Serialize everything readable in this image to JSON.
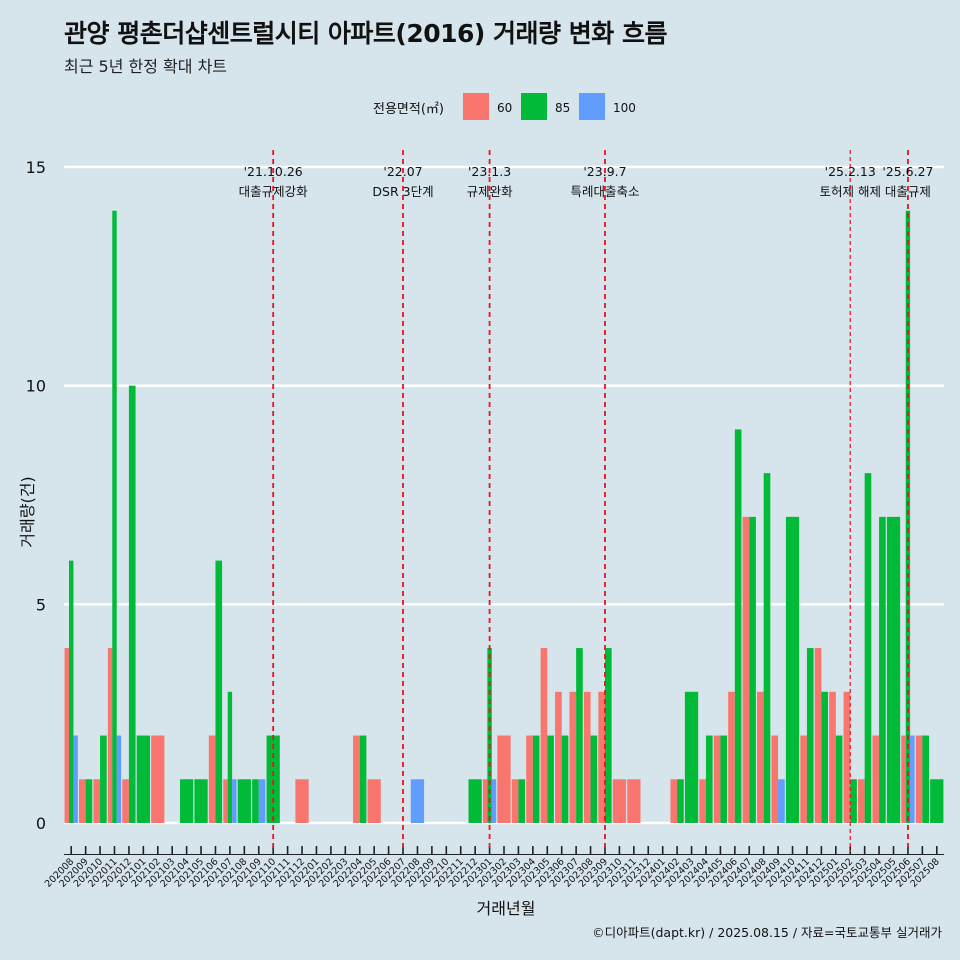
{
  "title": "관양 평촌더샵센트럴시티 아파트(2016) 거래량 변화 흐름",
  "subtitle": "최근 5년 한정 확대 차트",
  "caption": "©디아파트(dapt.kr) / 2025.08.15 / 자료=국토교통부 실거래가",
  "colors": {
    "background": "#d6e4ec",
    "60": "#f8766d",
    "85": "#00ba38",
    "100": "#619cff",
    "event_line": "#e8141c"
  },
  "chart_data": {
    "type": "bar",
    "title": "관양 평촌더샵센트럴시티 아파트(2016) 거래량 변화 흐름",
    "subtitle": "최근 5년 한정 확대 차트",
    "xlabel": "거래년월",
    "ylabel": "거래량(건)",
    "ylim": [
      0,
      15
    ],
    "yticks": [
      0,
      5,
      10,
      15
    ],
    "grid": true,
    "legend": {
      "title": "전용면적(㎡)",
      "position": "top"
    },
    "categories": [
      "202008",
      "202009",
      "202010",
      "202011",
      "202012",
      "202101",
      "202102",
      "202103",
      "202104",
      "202105",
      "202106",
      "202107",
      "202108",
      "202109",
      "202110",
      "202111",
      "202112",
      "202201",
      "202202",
      "202203",
      "202204",
      "202205",
      "202206",
      "202207",
      "202208",
      "202209",
      "202210",
      "202211",
      "202212",
      "202301",
      "202302",
      "202303",
      "202304",
      "202305",
      "202306",
      "202307",
      "202308",
      "202309",
      "202310",
      "202311",
      "202312",
      "202401",
      "202402",
      "202403",
      "202404",
      "202405",
      "202406",
      "202407",
      "202408",
      "202409",
      "202410",
      "202411",
      "202412",
      "202501",
      "202502",
      "202503",
      "202504",
      "202505",
      "202506",
      "202507",
      "202508"
    ],
    "series": [
      {
        "name": "60",
        "values": [
          4,
          1,
          1,
          4,
          1,
          0,
          2,
          0,
          0,
          0,
          2,
          1,
          0,
          0,
          0,
          0,
          1,
          0,
          0,
          0,
          2,
          1,
          0,
          0,
          0,
          0,
          0,
          0,
          0,
          1,
          2,
          1,
          2,
          4,
          3,
          3,
          3,
          3,
          1,
          1,
          0,
          0,
          1,
          0,
          1,
          2,
          3,
          7,
          3,
          2,
          0,
          2,
          4,
          3,
          3,
          1,
          2,
          0,
          2,
          2,
          0
        ]
      },
      {
        "name": "85",
        "values": [
          6,
          1,
          2,
          14,
          10,
          2,
          0,
          0,
          1,
          1,
          6,
          3,
          1,
          1,
          2,
          0,
          0,
          0,
          0,
          0,
          2,
          0,
          0,
          0,
          0,
          0,
          0,
          0,
          1,
          4,
          0,
          1,
          2,
          2,
          2,
          4,
          2,
          4,
          0,
          0,
          0,
          0,
          1,
          3,
          2,
          2,
          9,
          7,
          8,
          0,
          7,
          4,
          3,
          2,
          1,
          8,
          7,
          7,
          14,
          2,
          1
        ]
      },
      {
        "name": "100",
        "values": [
          2,
          0,
          0,
          2,
          0,
          0,
          0,
          0,
          0,
          0,
          0,
          1,
          0,
          1,
          0,
          0,
          0,
          0,
          0,
          0,
          0,
          0,
          0,
          0,
          1,
          0,
          0,
          0,
          0,
          1,
          0,
          0,
          0,
          0,
          0,
          0,
          0,
          0,
          0,
          0,
          0,
          0,
          0,
          0,
          0,
          0,
          0,
          0,
          0,
          1,
          0,
          0,
          0,
          0,
          0,
          0,
          0,
          0,
          2,
          0,
          0
        ]
      }
    ],
    "annotations": [
      {
        "date": "'21.10.26",
        "text": "대출규제강화",
        "category": "202110",
        "style": "dashed"
      },
      {
        "date": "'22.07",
        "text": "DSR 3단계",
        "category": "202207",
        "style": "dashed"
      },
      {
        "date": "'23.1.3",
        "text": "규제완화",
        "category": "202301",
        "style": "dashed"
      },
      {
        "date": "'23.9.7",
        "text": "특례대출축소",
        "category": "202309",
        "style": "dashed"
      },
      {
        "date": "'25.2.13",
        "text": "토허제 해제",
        "category": "202502",
        "style": "thin-dashed"
      },
      {
        "date": "'25.6.27",
        "text": "대출규제",
        "category": "202506",
        "style": "dashed"
      }
    ]
  }
}
